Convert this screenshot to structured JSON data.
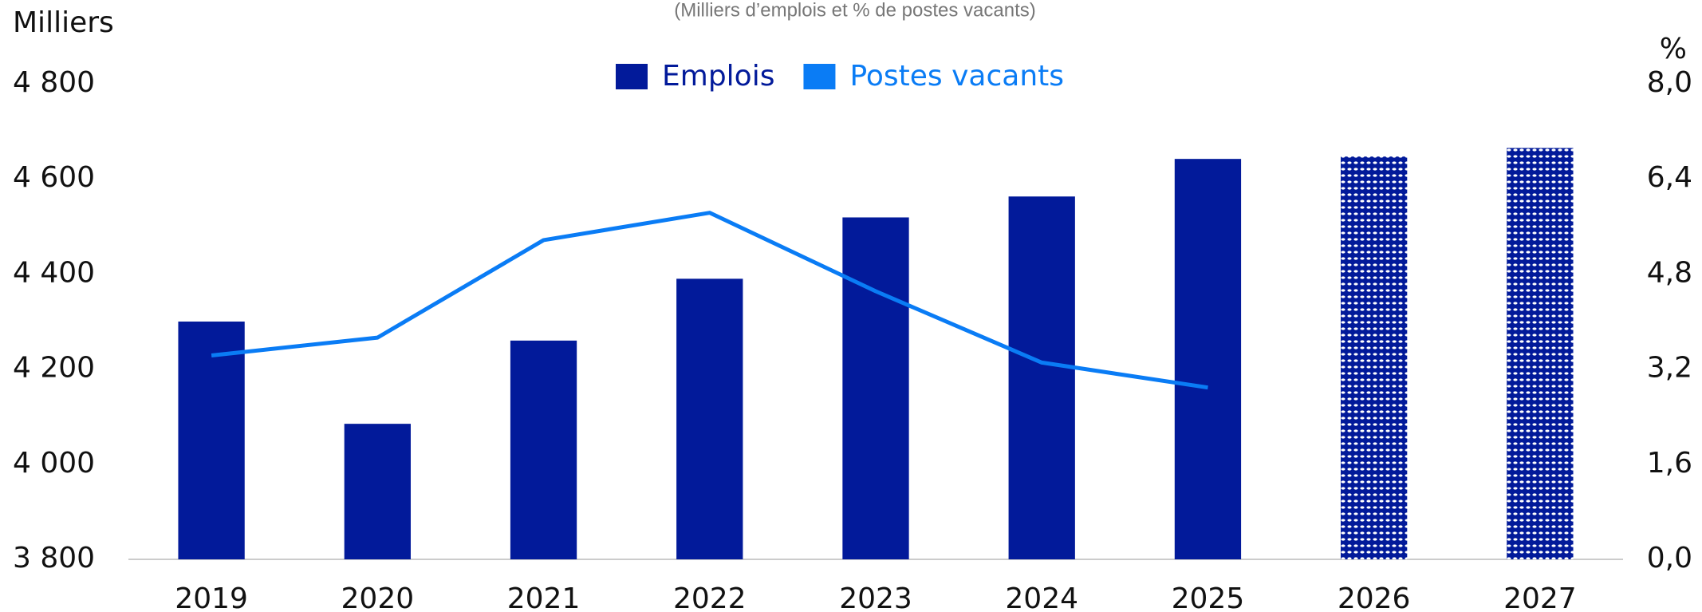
{
  "chart_data": {
    "type": "bar",
    "subtitle": "(Milliers d’emplois et % de postes vacants)",
    "y_label": "Milliers",
    "y2_label": "%",
    "categories": [
      "2019",
      "2020",
      "2021",
      "2022",
      "2023",
      "2024",
      "2025",
      "2026",
      "2027"
    ],
    "series": [
      {
        "name": "Emplois",
        "color": "#021a9a",
        "type": "bar",
        "values": [
          4300,
          4085,
          4260,
          4390,
          4519,
          4563,
          4642,
          4647,
          4665
        ],
        "hatched": [
          false,
          false,
          false,
          false,
          false,
          false,
          false,
          true,
          true
        ]
      },
      {
        "name": "Postes vacants",
        "color": "#0a7cf5",
        "type": "line",
        "axis": "y2",
        "values": [
          3.43,
          3.73,
          5.37,
          5.83,
          4.51,
          3.31,
          2.89,
          null,
          null
        ]
      }
    ],
    "ylim": [
      3800,
      4800
    ],
    "yticks": [
      {
        "value": 3800,
        "label": "3 800"
      },
      {
        "value": 4000,
        "label": "4 000"
      },
      {
        "value": 4200,
        "label": "4 200"
      },
      {
        "value": 4400,
        "label": "4 400"
      },
      {
        "value": 4600,
        "label": "4 600"
      },
      {
        "value": 4800,
        "label": "4 800"
      }
    ],
    "y2lim": [
      0,
      8
    ],
    "y2ticks": [
      {
        "value": 0,
        "label": "0,0"
      },
      {
        "value": 1.6,
        "label": "1,6"
      },
      {
        "value": 3.2,
        "label": "3,2"
      },
      {
        "value": 4.8,
        "label": "4,8"
      },
      {
        "value": 6.4,
        "label": "6,4"
      },
      {
        "value": 8,
        "label": "8,0"
      }
    ],
    "legend": "top"
  }
}
